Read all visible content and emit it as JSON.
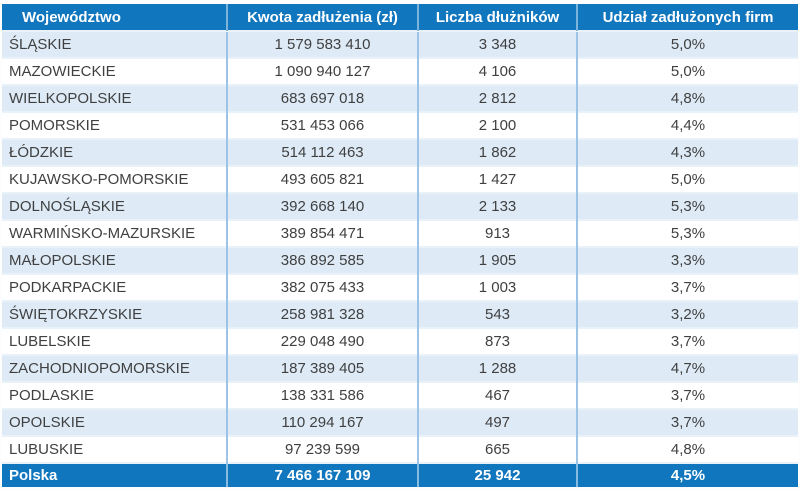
{
  "table": {
    "headers": [
      "Województwo",
      "Kwota zadłużenia (zł)",
      "Liczba dłużników",
      "Udział zadłużonych firm"
    ],
    "rows": [
      [
        "ŚLĄSKIE",
        "1 579 583 410",
        "3 348",
        "5,0%"
      ],
      [
        "MAZOWIECKIE",
        "1 090 940 127",
        "4 106",
        "5,0%"
      ],
      [
        "WIELKOPOLSKIE",
        "683 697 018",
        "2 812",
        "4,8%"
      ],
      [
        "POMORSKIE",
        "531 453 066",
        "2 100",
        "4,4%"
      ],
      [
        "ŁÓDZKIE",
        "514 112 463",
        "1 862",
        "4,3%"
      ],
      [
        "KUJAWSKO-POMORSKIE",
        "493 605 821",
        "1 427",
        "5,0%"
      ],
      [
        "DOLNOŚLĄSKIE",
        "392 668 140",
        "2 133",
        "5,3%"
      ],
      [
        "WARMIŃSKO-MAZURSKIE",
        "389 854 471",
        "913",
        "5,3%"
      ],
      [
        "MAŁOPOLSKIE",
        "386 892 585",
        "1 905",
        "3,3%"
      ],
      [
        "PODKARPACKIE",
        "382 075 433",
        "1 003",
        "3,7%"
      ],
      [
        "ŚWIĘTOKRZYSKIE",
        "258 981 328",
        "543",
        "3,2%"
      ],
      [
        "LUBELSKIE",
        "229 048 490",
        "873",
        "3,7%"
      ],
      [
        "ZACHODNIOPOMORSKIE",
        "187 389 405",
        "1 288",
        "4,7%"
      ],
      [
        "PODLASKIE",
        "138 331 586",
        "467",
        "3,7%"
      ],
      [
        "OPOLSKIE",
        "110 294 167",
        "497",
        "3,7%"
      ],
      [
        "LUBUSKIE",
        "97 239 599",
        "665",
        "4,8%"
      ]
    ],
    "total": [
      "Polska",
      "7 466 167 109",
      "25 942",
      "4,5%"
    ]
  },
  "colors": {
    "header_bg": "#1076BE",
    "header_text": "#FFFFFF",
    "row_alt_bg": "#DEEBF7",
    "row_bg": "#FFFFFF",
    "total_bg": "#1076BE",
    "total_text": "#FFFFFF",
    "grid_vertical": "#9DC3E6",
    "grid_horizontal": "#E9F1F9",
    "body_text": "#404040"
  },
  "chart_data": {
    "type": "table",
    "columns": [
      "Województwo",
      "Kwota zadłużenia (zł)",
      "Liczba dłużników",
      "Udział zadłużonych firm"
    ],
    "rows": [
      {
        "wojewodztwo": "ŚLĄSKIE",
        "kwota_zadluzenia_zl": 1579583410,
        "liczba_dluznikow": 3348,
        "udzial_zadluzonych_firm_pct": 5.0
      },
      {
        "wojewodztwo": "MAZOWIECKIE",
        "kwota_zadluzenia_zl": 1090940127,
        "liczba_dluznikow": 4106,
        "udzial_zadluzonych_firm_pct": 5.0
      },
      {
        "wojewodztwo": "WIELKOPOLSKIE",
        "kwota_zadluzenia_zl": 683697018,
        "liczba_dluznikow": 2812,
        "udzial_zadluzonych_firm_pct": 4.8
      },
      {
        "wojewodztwo": "POMORSKIE",
        "kwota_zadluzenia_zl": 531453066,
        "liczba_dluznikow": 2100,
        "udzial_zadluzonych_firm_pct": 4.4
      },
      {
        "wojewodztwo": "ŁÓDZKIE",
        "kwota_zadluzenia_zl": 514112463,
        "liczba_dluznikow": 1862,
        "udzial_zadluzonych_firm_pct": 4.3
      },
      {
        "wojewodztwo": "KUJAWSKO-POMORSKIE",
        "kwota_zadluzenia_zl": 493605821,
        "liczba_dluznikow": 1427,
        "udzial_zadluzonych_firm_pct": 5.0
      },
      {
        "wojewodztwo": "DOLNOŚLĄSKIE",
        "kwota_zadluzenia_zl": 392668140,
        "liczba_dluznikow": 2133,
        "udzial_zadluzonych_firm_pct": 5.3
      },
      {
        "wojewodztwo": "WARMIŃSKO-MAZURSKIE",
        "kwota_zadluzenia_zl": 389854471,
        "liczba_dluznikow": 913,
        "udzial_zadluzonych_firm_pct": 5.3
      },
      {
        "wojewodztwo": "MAŁOPOLSKIE",
        "kwota_zadluzenia_zl": 386892585,
        "liczba_dluznikow": 1905,
        "udzial_zadluzonych_firm_pct": 3.3
      },
      {
        "wojewodztwo": "PODKARPACKIE",
        "kwota_zadluzenia_zl": 382075433,
        "liczba_dluznikow": 1003,
        "udzial_zadluzonych_firm_pct": 3.7
      },
      {
        "wojewodztwo": "ŚWIĘTOKRZYSKIE",
        "kwota_zadluzenia_zl": 258981328,
        "liczba_dluznikow": 543,
        "udzial_zadluzonych_firm_pct": 3.2
      },
      {
        "wojewodztwo": "LUBELSKIE",
        "kwota_zadluzenia_zl": 229048490,
        "liczba_dluznikow": 873,
        "udzial_zadluzonych_firm_pct": 3.7
      },
      {
        "wojewodztwo": "ZACHODNIOPOMORSKIE",
        "kwota_zadluzenia_zl": 187389405,
        "liczba_dluznikow": 1288,
        "udzial_zadluzonych_firm_pct": 4.7
      },
      {
        "wojewodztwo": "PODLASKIE",
        "kwota_zadluzenia_zl": 138331586,
        "liczba_dluznikow": 467,
        "udzial_zadluzonych_firm_pct": 3.7
      },
      {
        "wojewodztwo": "OPOLSKIE",
        "kwota_zadluzenia_zl": 110294167,
        "liczba_dluznikow": 497,
        "udzial_zadluzonych_firm_pct": 3.7
      },
      {
        "wojewodztwo": "LUBUSKIE",
        "kwota_zadluzenia_zl": 97239599,
        "liczba_dluznikow": 665,
        "udzial_zadluzonych_firm_pct": 4.8
      }
    ],
    "total_row": {
      "wojewodztwo": "Polska",
      "kwota_zadluzenia_zl": 7466167109,
      "liczba_dluznikow": 25942,
      "udzial_zadluzonych_firm_pct": 4.5
    }
  }
}
